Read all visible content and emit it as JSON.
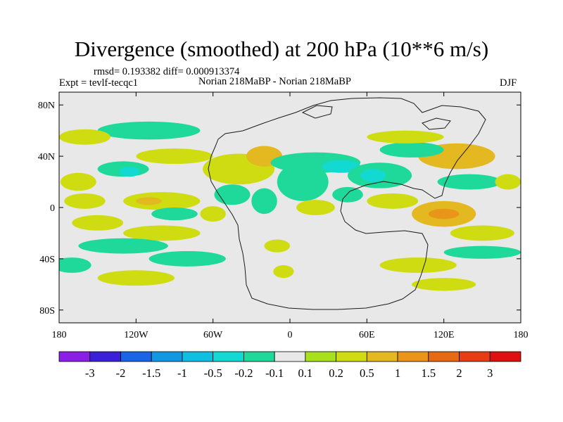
{
  "chart_data": {
    "type": "heatmap",
    "title": "Divergence (smoothed) at 200 hPa (10**6 m/s)",
    "stats": "rmsd= 0.193382 diff= 0.000913374",
    "experiment": "Expt = tevlf-tecqc1",
    "comparison": "Norian 218MaBP - Norian 218MaBP",
    "season": "DJF",
    "x_range": [
      -180,
      180
    ],
    "y_range": [
      -90,
      90
    ],
    "x_ticks": [
      {
        "value": -180,
        "label": "180"
      },
      {
        "value": -120,
        "label": "120W"
      },
      {
        "value": -60,
        "label": "60W"
      },
      {
        "value": 0,
        "label": "0"
      },
      {
        "value": 60,
        "label": "60E"
      },
      {
        "value": 120,
        "label": "120E"
      },
      {
        "value": 180,
        "label": "180"
      }
    ],
    "y_ticks": [
      {
        "value": 80,
        "label": "80N"
      },
      {
        "value": 40,
        "label": "40N"
      },
      {
        "value": 0,
        "label": "0"
      },
      {
        "value": -40,
        "label": "40S"
      },
      {
        "value": -80,
        "label": "80S"
      }
    ],
    "colorbar": {
      "labels": [
        "-3",
        "-2",
        "-1.5",
        "-1",
        "-0.5",
        "-0.2",
        "-0.1",
        "0.1",
        "0.2",
        "0.5",
        "1",
        "1.5",
        "2",
        "3"
      ],
      "colors": [
        "#8a1fe6",
        "#3a20d8",
        "#1c64e6",
        "#1198e0",
        "#0fbfe0",
        "#12d9d2",
        "#1fd99a",
        "#e8e8e8",
        "#a8e01a",
        "#cfdc12",
        "#e3b820",
        "#e8951a",
        "#e66a14",
        "#e83c14",
        "#e01010"
      ]
    },
    "features": [
      {
        "lon": -165,
        "lat": 20,
        "rx": 14,
        "ry": 7,
        "level": "0.2"
      },
      {
        "lon": -160,
        "lat": 5,
        "rx": 16,
        "ry": 6,
        "level": "0.2"
      },
      {
        "lon": -150,
        "lat": -12,
        "rx": 20,
        "ry": 6,
        "level": "0.2"
      },
      {
        "lon": -130,
        "lat": 30,
        "rx": 20,
        "ry": 6,
        "level": "-0.1"
      },
      {
        "lon": -125,
        "lat": 28,
        "rx": 8,
        "ry": 4,
        "level": "-0.2"
      },
      {
        "lon": -100,
        "lat": 5,
        "rx": 30,
        "ry": 7,
        "level": "0.2"
      },
      {
        "lon": -110,
        "lat": 5,
        "rx": 10,
        "ry": 3,
        "level": "0.5"
      },
      {
        "lon": -90,
        "lat": -5,
        "rx": 18,
        "ry": 5,
        "level": "-0.1"
      },
      {
        "lon": -100,
        "lat": -20,
        "rx": 30,
        "ry": 6,
        "level": "0.2"
      },
      {
        "lon": -130,
        "lat": -30,
        "rx": 35,
        "ry": 6,
        "level": "-0.1"
      },
      {
        "lon": -80,
        "lat": -40,
        "rx": 30,
        "ry": 6,
        "level": "-0.1"
      },
      {
        "lon": -90,
        "lat": 40,
        "rx": 30,
        "ry": 6,
        "level": "0.2"
      },
      {
        "lon": -110,
        "lat": 60,
        "rx": 40,
        "ry": 7,
        "level": "-0.1"
      },
      {
        "lon": -160,
        "lat": 55,
        "rx": 20,
        "ry": 6,
        "level": "0.2"
      },
      {
        "lon": -40,
        "lat": 30,
        "rx": 28,
        "ry": 12,
        "level": "0.2"
      },
      {
        "lon": -20,
        "lat": 40,
        "rx": 14,
        "ry": 8,
        "level": "0.5"
      },
      {
        "lon": -45,
        "lat": 10,
        "rx": 14,
        "ry": 8,
        "level": "-0.1"
      },
      {
        "lon": -20,
        "lat": 5,
        "rx": 10,
        "ry": 10,
        "level": "-0.1"
      },
      {
        "lon": -60,
        "lat": -5,
        "rx": 10,
        "ry": 6,
        "level": "0.2"
      },
      {
        "lon": -10,
        "lat": -30,
        "rx": 10,
        "ry": 5,
        "level": "0.2"
      },
      {
        "lon": -5,
        "lat": -50,
        "rx": 8,
        "ry": 5,
        "level": "0.2"
      },
      {
        "lon": 10,
        "lat": 20,
        "rx": 20,
        "ry": 15,
        "level": "-0.1"
      },
      {
        "lon": 20,
        "lat": 35,
        "rx": 35,
        "ry": 8,
        "level": "-0.1"
      },
      {
        "lon": 40,
        "lat": 32,
        "rx": 15,
        "ry": 5,
        "level": "-0.2"
      },
      {
        "lon": 70,
        "lat": 25,
        "rx": 25,
        "ry": 10,
        "level": "-0.1"
      },
      {
        "lon": 65,
        "lat": 25,
        "rx": 10,
        "ry": 5,
        "level": "-0.2"
      },
      {
        "lon": 20,
        "lat": 0,
        "rx": 15,
        "ry": 6,
        "level": "0.2"
      },
      {
        "lon": 45,
        "lat": 10,
        "rx": 12,
        "ry": 6,
        "level": "-0.1"
      },
      {
        "lon": 80,
        "lat": 5,
        "rx": 20,
        "ry": 6,
        "level": "0.2"
      },
      {
        "lon": 120,
        "lat": -5,
        "rx": 25,
        "ry": 10,
        "level": "0.5"
      },
      {
        "lon": 120,
        "lat": -5,
        "rx": 12,
        "ry": 4,
        "level": "1"
      },
      {
        "lon": 130,
        "lat": 40,
        "rx": 30,
        "ry": 10,
        "level": "0.5"
      },
      {
        "lon": 95,
        "lat": 45,
        "rx": 25,
        "ry": 6,
        "level": "-0.1"
      },
      {
        "lon": 90,
        "lat": 55,
        "rx": 30,
        "ry": 5,
        "level": "0.2"
      },
      {
        "lon": 140,
        "lat": 20,
        "rx": 25,
        "ry": 6,
        "level": "-0.1"
      },
      {
        "lon": 170,
        "lat": 20,
        "rx": 10,
        "ry": 6,
        "level": "0.2"
      },
      {
        "lon": 150,
        "lat": -20,
        "rx": 25,
        "ry": 6,
        "level": "0.2"
      },
      {
        "lon": 150,
        "lat": -35,
        "rx": 30,
        "ry": 5,
        "level": "-0.1"
      },
      {
        "lon": 100,
        "lat": -45,
        "rx": 30,
        "ry": 6,
        "level": "0.2"
      },
      {
        "lon": 120,
        "lat": -60,
        "rx": 25,
        "ry": 5,
        "level": "0.2"
      },
      {
        "lon": -120,
        "lat": -55,
        "rx": 30,
        "ry": 6,
        "level": "0.2"
      },
      {
        "lon": -170,
        "lat": -45,
        "rx": 15,
        "ry": 6,
        "level": "-0.1"
      }
    ]
  }
}
